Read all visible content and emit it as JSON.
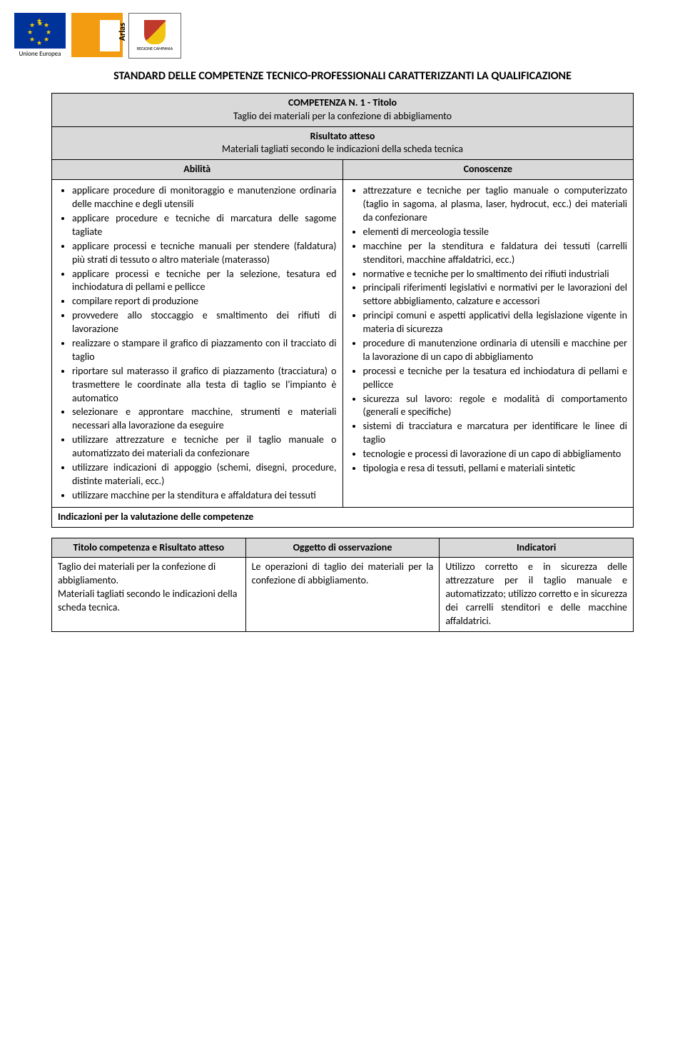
{
  "logos": {
    "eu_label": "Unione Europea",
    "regione_label": "REGIONE CAMPANIA",
    "arlas_text": "Arlas"
  },
  "main_title": "STANDARD DELLE COMPETENZE TECNICO-PROFESSIONALI CARATTERIZZANTI LA QUALIFICAZIONE",
  "competenza": {
    "number_label": "COMPETENZA N. 1 - Titolo",
    "titolo": "Taglio dei materiali per la confezione di abbigliamento",
    "risultato_label": "Risultato atteso",
    "risultato_text": "Materiali tagliati secondo le indicazioni della scheda tecnica",
    "abilita_label": "Abilità",
    "conoscenze_label": "Conoscenze",
    "abilita": [
      "applicare procedure di monitoraggio e manutenzione ordinaria delle macchine e degli utensili",
      "applicare procedure e tecniche di marcatura delle sagome tagliate",
      "applicare processi e tecniche manuali per stendere (faldatura) più strati di tessuto o altro materiale (materasso)",
      "applicare processi e tecniche per la selezione, tesatura ed inchiodatura di pellami e pellicce",
      "compilare report di produzione",
      "provvedere allo stoccaggio e smaltimento dei rifiuti di lavorazione",
      "realizzare o stampare il grafico di piazzamento con il tracciato di taglio",
      "riportare sul materasso il grafico di piazzamento (tracciatura) o trasmettere le coordinate alla testa di taglio se l'impianto è automatico",
      "selezionare e approntare macchine, strumenti e materiali necessari alla lavorazione da eseguire",
      "utilizzare attrezzature e tecniche per il taglio manuale o automatizzato dei materiali da confezionare",
      "utilizzare indicazioni di appoggio (schemi, disegni, procedure, distinte materiali, ecc.)",
      "utilizzare macchine per la stenditura e affaldatura dei tessuti"
    ],
    "conoscenze": [
      "attrezzature e tecniche per taglio manuale o computerizzato (taglio in sagoma, al plasma, laser, hydrocut, ecc.) dei materiali da confezionare",
      "elementi di merceologia tessile",
      "macchine per la stenditura e faldatura dei tessuti (carrelli stenditori, macchine affaldatrici, ecc.)",
      "normative e tecniche per lo smaltimento dei rifiuti industriali",
      "principali riferimenti legislativi e normativi per le lavorazioni del settore abbigliamento, calzature e accessori",
      "principi comuni e aspetti applicativi della legislazione vigente in materia di sicurezza",
      "procedure di manutenzione ordinaria di utensili e macchine per la lavorazione di un capo di abbigliamento",
      "processi e tecniche per la tesatura ed inchiodatura di pellami e pellicce",
      "sicurezza sul lavoro: regole e modalità di comportamento (generali e specifiche)",
      "sistemi di tracciatura e marcatura per identificare le linee di taglio",
      "tecnologie e processi di lavorazione di un capo di abbigliamento",
      "tipologia e resa di tessuti, pellami e materiali sintetic"
    ],
    "indicazioni_label": "Indicazioni per la valutazione delle competenze"
  },
  "eval_table": {
    "headers": [
      "Titolo competenza e Risultato atteso",
      "Oggetto di osservazione",
      "Indicatori"
    ],
    "row": {
      "col1": "Taglio dei materiali per la confezione di abbigliamento.\nMateriali tagliati secondo le indicazioni della scheda tecnica.",
      "col2": "Le operazioni di taglio dei materiali per la confezione di abbigliamento.",
      "col3": "Utilizzo corretto e in sicurezza delle attrezzature per il taglio manuale e automatizzato; utilizzo corretto e in sicurezza dei carrelli stenditori e delle macchine affaldatrici."
    }
  },
  "colors": {
    "shade_bg": "#d9d9d9",
    "border": "#000000"
  },
  "typography": {
    "body_fontsize": 14,
    "title_fontsize": 16
  }
}
